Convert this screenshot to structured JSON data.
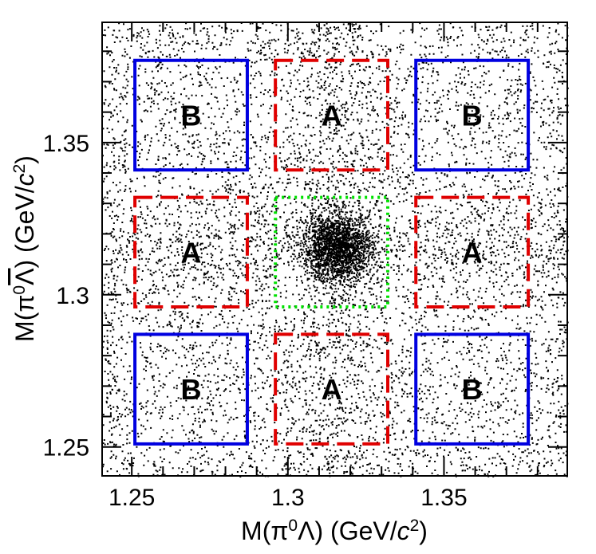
{
  "chart_data": {
    "type": "scatter",
    "title": "",
    "xlabel": "M(π⁰Λ) (GeV/c²)",
    "ylabel": "M(π⁰Λ̅) (GeV/c²)",
    "xlabel_parts": {
      "pre": "M(π",
      "sup1": "0",
      "mid": "Λ) (GeV/",
      "ital": "c",
      "sup2": "2",
      "post": ")"
    },
    "ylabel_parts": {
      "pre": "M(π",
      "sup1": "0",
      "mid_overline": "Λ",
      "post1": ") (GeV/",
      "ital": "c",
      "sup2": "2",
      "post2": ")"
    },
    "xlim": [
      1.2405,
      1.3895
    ],
    "ylim": [
      1.2405,
      1.3895
    ],
    "xticks": [
      {
        "value": 1.25,
        "label": "1.25"
      },
      {
        "value": 1.3,
        "label": "1.3"
      },
      {
        "value": 1.35,
        "label": "1.35"
      }
    ],
    "yticks": [
      {
        "value": 1.25,
        "label": "1.25"
      },
      {
        "value": 1.3,
        "label": "1.3"
      },
      {
        "value": 1.35,
        "label": "1.35"
      }
    ],
    "signal_peak": {
      "x": 1.3157,
      "y": 1.3157,
      "sigma": 0.0055,
      "n_points": 1900
    },
    "background": {
      "n_points": 9000,
      "band_x": {
        "center": 1.3157,
        "sigma": 0.006,
        "n_points": 600
      },
      "band_y": {
        "center": 1.3157,
        "sigma": 0.006,
        "n_points": 600
      }
    },
    "regions": [
      {
        "name": "signal",
        "label": "",
        "style": "dotted",
        "color": "#00e000",
        "x": [
          1.296,
          1.332
        ],
        "y": [
          1.296,
          1.332
        ]
      },
      {
        "name": "sideband-a-top",
        "label": "A",
        "style": "dashed",
        "color": "#e00000",
        "x": [
          1.296,
          1.332
        ],
        "y": [
          1.341,
          1.377
        ]
      },
      {
        "name": "sideband-a-bottom",
        "label": "A",
        "style": "dashed",
        "color": "#e00000",
        "x": [
          1.296,
          1.332
        ],
        "y": [
          1.251,
          1.287
        ]
      },
      {
        "name": "sideband-a-left",
        "label": "A",
        "style": "dashed",
        "color": "#e00000",
        "x": [
          1.251,
          1.287
        ],
        "y": [
          1.296,
          1.332
        ]
      },
      {
        "name": "sideband-a-right",
        "label": "A",
        "style": "dashed",
        "color": "#e00000",
        "x": [
          1.341,
          1.377
        ],
        "y": [
          1.296,
          1.332
        ]
      },
      {
        "name": "sideband-b-top-left",
        "label": "B",
        "style": "solid",
        "color": "#0000e0",
        "x": [
          1.251,
          1.287
        ],
        "y": [
          1.341,
          1.377
        ]
      },
      {
        "name": "sideband-b-top-right",
        "label": "B",
        "style": "solid",
        "color": "#0000e0",
        "x": [
          1.341,
          1.377
        ],
        "y": [
          1.341,
          1.377
        ]
      },
      {
        "name": "sideband-b-bottom-left",
        "label": "B",
        "style": "solid",
        "color": "#0000e0",
        "x": [
          1.251,
          1.287
        ],
        "y": [
          1.251,
          1.287
        ]
      },
      {
        "name": "sideband-b-bottom-right",
        "label": "B",
        "style": "solid",
        "color": "#0000e0",
        "x": [
          1.341,
          1.377
        ],
        "y": [
          1.251,
          1.287
        ]
      }
    ]
  }
}
